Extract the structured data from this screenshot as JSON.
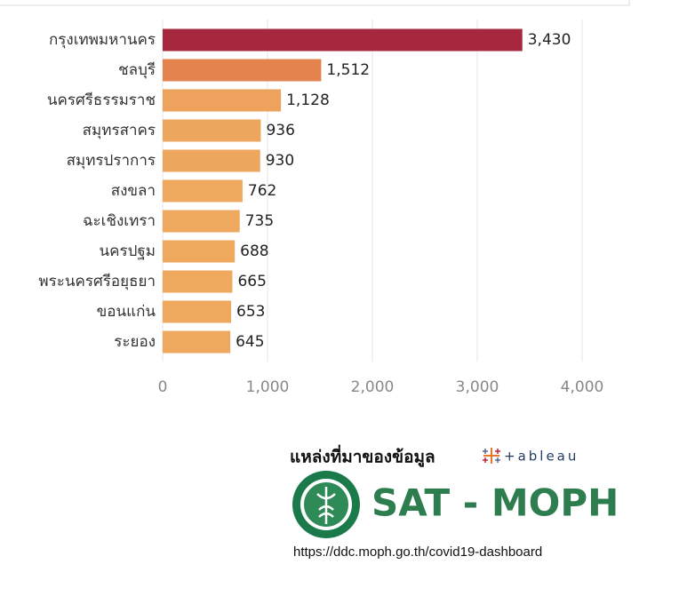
{
  "chart_data": {
    "type": "barh",
    "categories": [
      "กรุงเทพมหานคร",
      "ชลบุรี",
      "นครศรีธรรมราช",
      "สมุทรสาคร",
      "สมุทรปราการ",
      "สงขลา",
      "ฉะเชิงเทรา",
      "นครปฐม",
      "พระนครศรีอยุธยา",
      "ขอนแก่น",
      "ระยอง"
    ],
    "values": [
      3430,
      1512,
      1128,
      936,
      930,
      762,
      735,
      688,
      665,
      653,
      645
    ],
    "value_labels": [
      "3,430",
      "1,512",
      "1,128",
      "936",
      "930",
      "762",
      "735",
      "688",
      "665",
      "653",
      "645"
    ],
    "colors": [
      "#a6283f",
      "#e5834f",
      "#eda35d",
      "#eda65e",
      "#eda65e",
      "#eea95f",
      "#eea95f",
      "#eea95f",
      "#eea95f",
      "#eea95f",
      "#eea95f"
    ],
    "xlim": [
      0,
      4000
    ],
    "xticks": [
      0,
      {
        "value": 1000,
        "label": "1,000"
      },
      {
        "value": 2000,
        "label": "2,000"
      },
      {
        "value": 3000,
        "label": "3,000"
      },
      {
        "value": 4000,
        "label": "4,000"
      }
    ],
    "grid": true
  },
  "source": {
    "label": "แหล่งที่มาของข้อมูล",
    "tableau": "+ableau",
    "brand": "SAT - MOPH",
    "url": "https://ddc.moph.go.th/covid19-dashboard"
  }
}
